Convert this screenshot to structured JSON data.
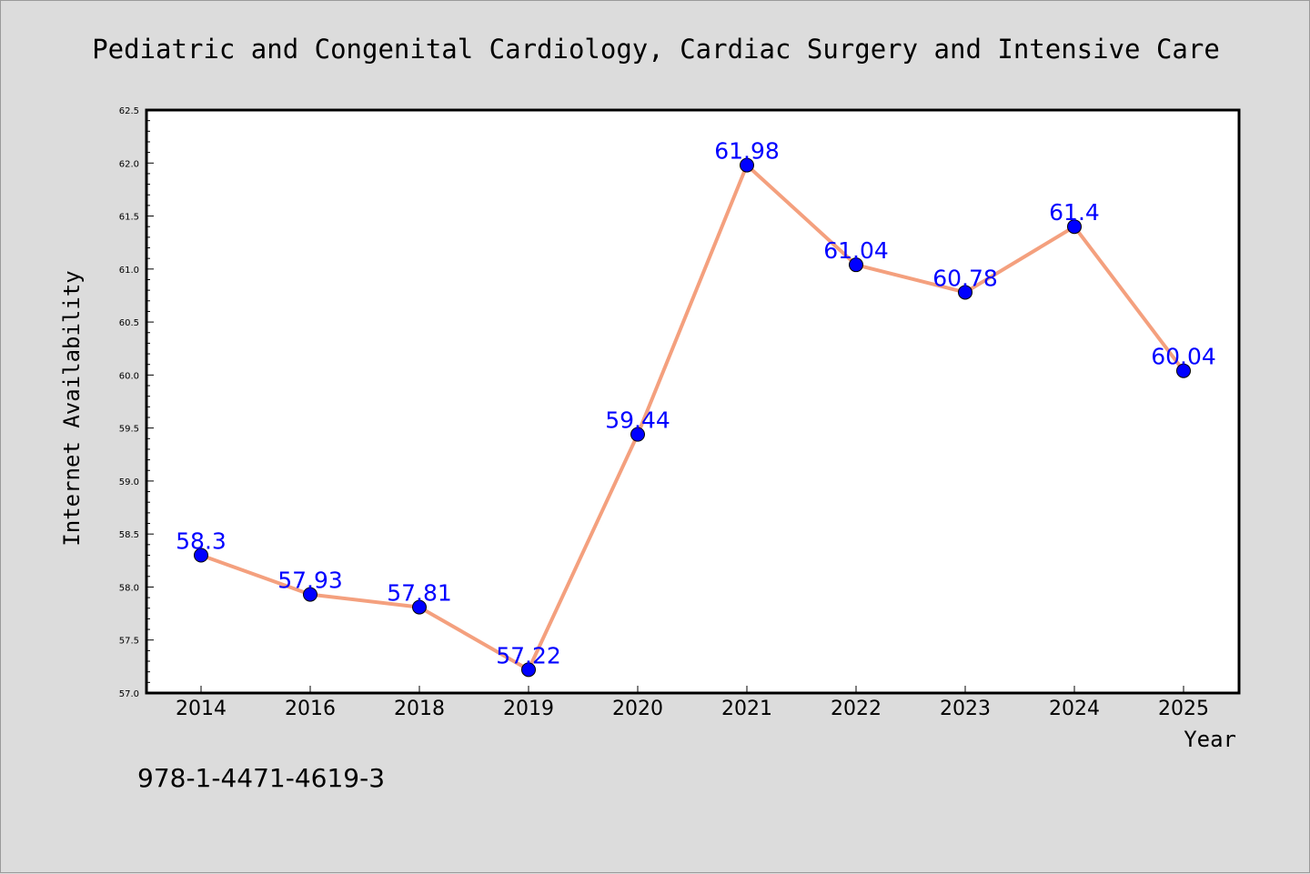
{
  "chart_data": {
    "type": "line",
    "title": "Pediatric and Congenital Cardiology, Cardiac Surgery and Intensive Care",
    "xlabel": "Year",
    "ylabel": "Internet Availability",
    "categories": [
      "2014",
      "2016",
      "2018",
      "2019",
      "2020",
      "2021",
      "2022",
      "2023",
      "2024",
      "2025"
    ],
    "series": [
      {
        "values": [
          58.3,
          57.93,
          57.81,
          57.22,
          59.44,
          61.98,
          61.04,
          60.78,
          61.4,
          60.04
        ]
      }
    ],
    "data_labels": [
      "58.3",
      "57.93",
      "57.81",
      "57.22",
      "59.44",
      "61.98",
      "61.04",
      "60.78",
      "61.4",
      "60.04"
    ],
    "ylim": [
      57.0,
      62.5
    ],
    "yticks": [
      "57.0",
      "57.5",
      "58.0",
      "58.5",
      "59.0",
      "59.5",
      "60.0",
      "60.5",
      "61.0",
      "61.5",
      "62.0",
      "62.5"
    ],
    "grid": false,
    "legend": "none",
    "line_color": "#f4a07e",
    "marker_color": "#0000ff",
    "label_color": "#0000ff"
  },
  "footer": {
    "isbn": "978-1-4471-4619-3"
  }
}
